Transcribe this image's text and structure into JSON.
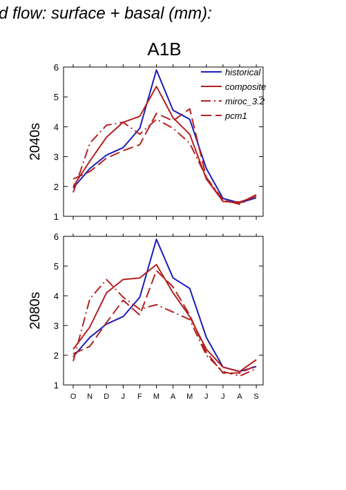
{
  "figure": {
    "supertitle": "d flow: surface + basal (mm):",
    "colors": {
      "historical": "#1a1ab8",
      "scenario": "#b41e1e"
    }
  },
  "chart_data": [
    {
      "type": "line",
      "title": "A1B",
      "ylabel": "2040s",
      "xlabel": "",
      "categories": [
        "O",
        "N",
        "D",
        "J",
        "F",
        "M",
        "A",
        "M",
        "J",
        "J",
        "A",
        "S"
      ],
      "ylim": [
        1,
        6
      ],
      "yticks": [
        1,
        2,
        3,
        4,
        5,
        6
      ],
      "grid": false,
      "legend_position": "top-right",
      "series": [
        {
          "name": "historical",
          "style": "solid",
          "color": "#1a1ab8",
          "values": [
            1.95,
            2.6,
            3.05,
            3.3,
            3.95,
            5.9,
            4.55,
            4.25,
            2.6,
            1.6,
            1.45,
            1.62
          ]
        },
        {
          "name": "composite",
          "style": "solid",
          "color": "#b41e1e",
          "values": [
            2.0,
            2.85,
            3.65,
            4.15,
            4.35,
            5.35,
            4.3,
            3.75,
            2.25,
            1.5,
            1.45,
            1.72
          ]
        },
        {
          "name": "miroc_3.2",
          "style": "dashdot",
          "color": "#b41e1e",
          "values": [
            1.8,
            3.45,
            4.05,
            4.15,
            3.75,
            4.25,
            3.95,
            3.45,
            2.3,
            1.55,
            1.4,
            1.7
          ]
        },
        {
          "name": "pcm1",
          "style": "dashed",
          "color": "#b41e1e",
          "values": [
            2.25,
            2.5,
            2.95,
            3.2,
            3.4,
            4.45,
            4.2,
            4.6,
            2.3,
            1.5,
            1.48,
            1.68
          ]
        }
      ]
    },
    {
      "type": "line",
      "title": "",
      "ylabel": "2080s",
      "xlabel": "",
      "categories": [
        "O",
        "N",
        "D",
        "J",
        "F",
        "M",
        "A",
        "M",
        "J",
        "J",
        "A",
        "S"
      ],
      "ylim": [
        1,
        6
      ],
      "yticks": [
        1,
        2,
        3,
        4,
        5,
        6
      ],
      "grid": false,
      "legend_position": "none",
      "series": [
        {
          "name": "historical",
          "style": "solid",
          "color": "#1a1ab8",
          "values": [
            1.95,
            2.6,
            3.05,
            3.3,
            3.95,
            5.9,
            4.6,
            4.25,
            2.6,
            1.6,
            1.45,
            1.62
          ]
        },
        {
          "name": "composite",
          "style": "solid",
          "color": "#b41e1e",
          "values": [
            2.2,
            2.95,
            4.1,
            4.55,
            4.6,
            5.05,
            4.1,
            3.3,
            2.2,
            1.6,
            1.45,
            1.85
          ]
        },
        {
          "name": "miroc_3.2",
          "style": "dashdot",
          "color": "#b41e1e",
          "values": [
            1.8,
            3.9,
            4.55,
            3.95,
            3.55,
            3.7,
            3.45,
            3.2,
            2.0,
            1.45,
            1.3,
            1.55
          ]
        },
        {
          "name": "pcm1",
          "style": "dashed",
          "color": "#b41e1e",
          "values": [
            2.05,
            2.3,
            3.1,
            3.85,
            3.35,
            4.85,
            4.3,
            3.35,
            2.1,
            1.4,
            1.4,
            1.65
          ]
        }
      ]
    }
  ]
}
